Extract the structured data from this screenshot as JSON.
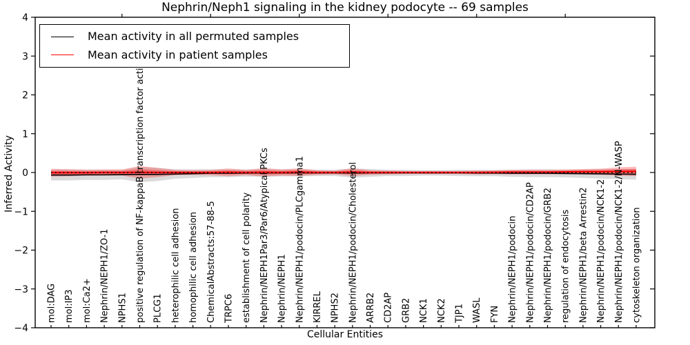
{
  "title": "Nephrin/Neph1 signaling in the kidney podocyte -- 69 samples",
  "legend": {
    "position": "upper left",
    "entries": [
      {
        "label": "Mean activity in all permuted samples",
        "color": "#000000"
      },
      {
        "label": "Mean activity in patient samples",
        "color": "#ff0000"
      }
    ]
  },
  "chart_data": {
    "type": "line",
    "title": "Nephrin/Neph1 signaling in the kidney podocyte -- 69 samples",
    "xlabel": "Cellular Entities",
    "ylabel": "Inferred Activity",
    "ylim": [
      -4,
      4
    ],
    "yticks": [
      4,
      3,
      2,
      1,
      0,
      -1,
      -2,
      -3,
      -4
    ],
    "grid": false,
    "legend_position": "upper left",
    "zero_line": {
      "value": 0,
      "style": "dotted",
      "color": "#000000"
    },
    "top_tick_indices": [
      4,
      9,
      14,
      19,
      24,
      29
    ],
    "categories": [
      "mol:DAG",
      "mol:IP3",
      "mol:Ca2+",
      "Nephrin/NEPH1/ZO-1",
      "NPHS1",
      "positive regulation of NF-kappaB transcription factor activity",
      "PLCG1",
      "heterophilic cell adhesion",
      "homophilic cell adhesion",
      "ChemicalAbstracts:57-88-5",
      "TRPC6",
      "establishment of cell polarity",
      "Nephrin/NEPH1Par3/Par6/Atypical PKCs",
      "Nephrin/NEPH1",
      "Nephrin/NEPH1/podocin/PLCgamma1",
      "KIRREL",
      "NPHS2",
      "Nephrin/NEPH1/podocin/Cholesterol",
      "ARRB2",
      "CD2AP",
      "GRB2",
      "NCK1",
      "NCK2",
      "TJP1",
      "WASL",
      "FYN",
      "Nephrin/NEPH1/podocin",
      "Nephrin/NEPH1/podocin/CD2AP",
      "Nephrin/NEPH1/podocin/GRB2",
      "regulation of endocytosis",
      "Nephrin/NEPH1/beta Arrestin2",
      "Nephrin/NEPH1/podocin/NCK1-2",
      "Nephrin/NEPH1/podocin/NCK1-2/N-WASP",
      "cytoskeleton organization"
    ],
    "series": [
      {
        "name": "Mean activity in all permuted samples",
        "color": "#000000",
        "style": "solid",
        "values": [
          -0.065,
          -0.065,
          -0.06,
          -0.06,
          -0.055,
          -0.05,
          -0.05,
          -0.04,
          -0.03,
          -0.02,
          -0.02,
          -0.015,
          -0.01,
          -0.01,
          -0.01,
          -0.01,
          -0.01,
          -0.015,
          -0.01,
          -0.01,
          -0.01,
          -0.01,
          -0.01,
          -0.01,
          -0.015,
          -0.015,
          -0.02,
          -0.02,
          -0.02,
          -0.025,
          -0.03,
          -0.035,
          -0.04,
          -0.045
        ]
      },
      {
        "name": "Mean activity in patient samples",
        "color": "#ff0000",
        "style": "solid",
        "values": [
          -0.005,
          -0.005,
          -0.005,
          0,
          0,
          0.005,
          0,
          0,
          0,
          0,
          0.005,
          0,
          0.005,
          0,
          0.01,
          0,
          0,
          0.01,
          0,
          0,
          0,
          0,
          0,
          0,
          0,
          0.005,
          0.01,
          0.01,
          0.01,
          0.015,
          0.02,
          0.02,
          0.025,
          0.03
        ]
      }
    ],
    "bands": [
      {
        "name": "permuted samples spread",
        "color": "#888888",
        "opacity": 0.3,
        "center_series": 0,
        "half_widths": [
          0.14,
          0.14,
          0.13,
          0.13,
          0.12,
          0.2,
          0.17,
          0.12,
          0.11,
          0.1,
          0.1,
          0.09,
          0.1,
          0.09,
          0.09,
          0.08,
          0.08,
          0.12,
          0.1,
          0.08,
          0.08,
          0.07,
          0.07,
          0.08,
          0.08,
          0.08,
          0.09,
          0.1,
          0.1,
          0.1,
          0.11,
          0.12,
          0.13,
          0.14
        ]
      },
      {
        "name": "patient samples spread outer",
        "color": "#ff0000",
        "opacity": 0.26,
        "center_series": 1,
        "half_widths": [
          0.1,
          0.09,
          0.08,
          0.08,
          0.08,
          0.16,
          0.12,
          0.07,
          0.06,
          0.07,
          0.1,
          0.07,
          0.11,
          0.08,
          0.1,
          0.06,
          0.05,
          0.1,
          0.06,
          0.05,
          0.04,
          0.04,
          0.04,
          0.04,
          0.05,
          0.05,
          0.06,
          0.06,
          0.06,
          0.06,
          0.07,
          0.08,
          0.11,
          0.12
        ]
      },
      {
        "name": "patient samples spread inner",
        "color": "#ff0000",
        "opacity": 0.32,
        "center_series": 1,
        "half_widths": [
          0.05,
          0.045,
          0.04,
          0.04,
          0.04,
          0.08,
          0.06,
          0.035,
          0.03,
          0.035,
          0.05,
          0.035,
          0.055,
          0.04,
          0.05,
          0.03,
          0.025,
          0.05,
          0.03,
          0.025,
          0.02,
          0.02,
          0.02,
          0.02,
          0.025,
          0.025,
          0.03,
          0.03,
          0.03,
          0.03,
          0.035,
          0.04,
          0.055,
          0.06
        ]
      }
    ]
  }
}
